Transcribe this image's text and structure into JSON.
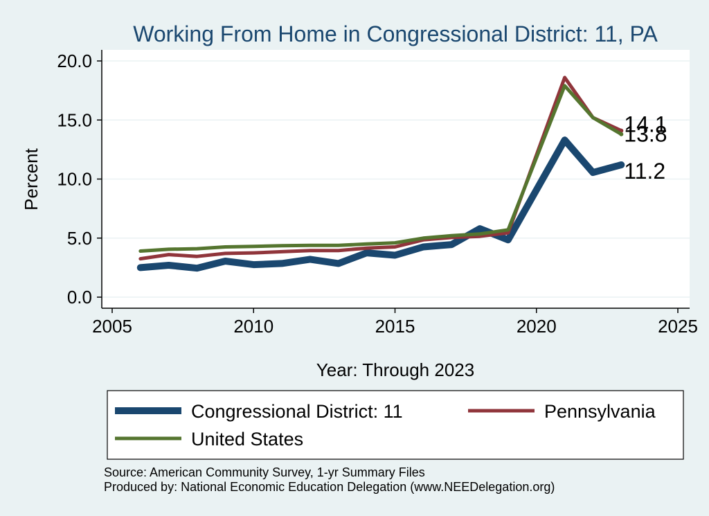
{
  "chart_data": {
    "type": "line",
    "title": "Working From Home in Congressional District: 11, PA",
    "xlabel": "Year: Through 2023",
    "ylabel": "Percent",
    "xlim": [
      2005,
      2025
    ],
    "ylim": [
      0,
      20
    ],
    "xticks": [
      2005,
      2010,
      2015,
      2020,
      2025
    ],
    "yticks": [
      "0.0",
      "5.0",
      "10.0",
      "15.0",
      "20.0"
    ],
    "grid": true,
    "x": [
      2006,
      2007,
      2008,
      2009,
      2010,
      2011,
      2012,
      2013,
      2014,
      2015,
      2016,
      2017,
      2018,
      2019,
      2021,
      2022,
      2023
    ],
    "series": [
      {
        "name": "Congressional District: 11",
        "color": "#1a476f",
        "values": [
          2.5,
          2.7,
          2.45,
          3.05,
          2.75,
          2.85,
          3.2,
          2.85,
          3.75,
          3.55,
          4.25,
          4.45,
          5.8,
          4.85,
          13.3,
          10.55,
          11.2
        ],
        "end_label": "11.2"
      },
      {
        "name": "Pennsylvania",
        "color": "#90353b",
        "values": [
          3.25,
          3.6,
          3.45,
          3.7,
          3.75,
          3.85,
          3.95,
          3.95,
          4.15,
          4.25,
          4.85,
          5.05,
          5.15,
          5.45,
          18.6,
          15.2,
          14.1
        ],
        "end_label": "14.1"
      },
      {
        "name": "United States",
        "color": "#55752f",
        "values": [
          3.9,
          4.05,
          4.1,
          4.25,
          4.3,
          4.35,
          4.38,
          4.38,
          4.5,
          4.6,
          5.0,
          5.2,
          5.35,
          5.7,
          17.9,
          15.2,
          13.8
        ],
        "end_label": "13.8"
      }
    ],
    "legend": {
      "placement": "bottom",
      "items": [
        "Congressional District: 11",
        "Pennsylvania",
        "United States"
      ]
    },
    "notes": [
      "Source: American Community Survey, 1-yr Summary Files",
      "Produced by: National Economic Education Delegation (www.NEEDelegation.org)"
    ]
  }
}
